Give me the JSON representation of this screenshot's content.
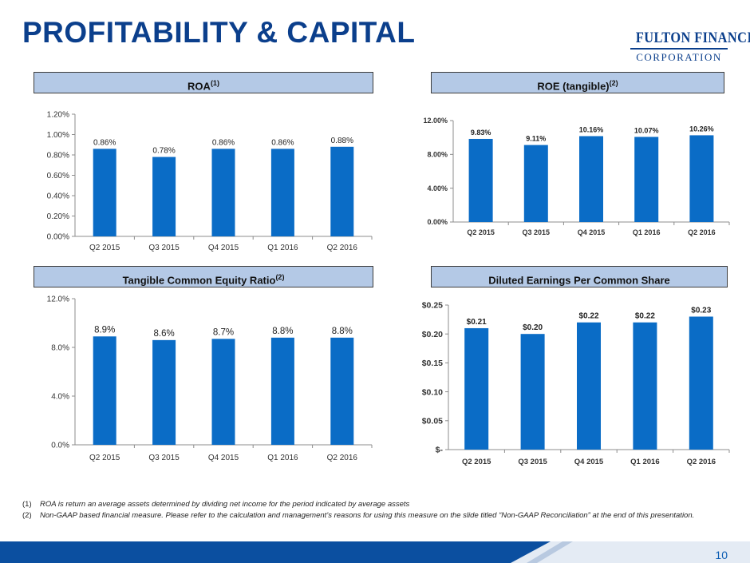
{
  "title": "PROFITABILITY & CAPITAL",
  "logo": {
    "line1": "FULTON FINANCIAL",
    "line2": "CORPORATION"
  },
  "colors": {
    "bar": "#0a6cc6",
    "header_bg": "#b4c9e6",
    "title": "#0b3f8c",
    "footer": "#0b4fa0"
  },
  "headers": {
    "roa": {
      "label": "ROA",
      "sup": "(1)"
    },
    "roe": {
      "label": "ROE (tangible)",
      "sup": "(2)"
    },
    "tce": {
      "label": "Tangible Common Equity Ratio",
      "sup": "(2)"
    },
    "eps": {
      "label": "Diluted Earnings Per Common Share",
      "sup": ""
    }
  },
  "chart_data": [
    {
      "id": "roa",
      "type": "bar",
      "title": "ROA",
      "categories": [
        "Q2 2015",
        "Q3 2015",
        "Q4 2015",
        "Q1 2016",
        "Q2 2016"
      ],
      "values": [
        0.86,
        0.78,
        0.86,
        0.86,
        0.88
      ],
      "data_labels": [
        "0.86%",
        "0.78%",
        "0.86%",
        "0.86%",
        "0.88%"
      ],
      "ylim": [
        0,
        1.2
      ],
      "yticks": [
        0,
        0.2,
        0.4,
        0.6,
        0.8,
        1.0,
        1.2
      ],
      "ytick_labels": [
        "0.00%",
        "0.20%",
        "0.40%",
        "0.60%",
        "0.80%",
        "1.00%",
        "1.20%"
      ]
    },
    {
      "id": "roe",
      "type": "bar",
      "title": "ROE (tangible)",
      "categories": [
        "Q2 2015",
        "Q3 2015",
        "Q4 2015",
        "Q1 2016",
        "Q2 2016"
      ],
      "values": [
        9.83,
        9.11,
        10.16,
        10.07,
        10.26
      ],
      "data_labels": [
        "9.83%",
        "9.11%",
        "10.16%",
        "10.07%",
        "10.26%"
      ],
      "ylim": [
        0,
        12
      ],
      "yticks": [
        0,
        4,
        8,
        12
      ],
      "ytick_labels": [
        "0.00%",
        "4.00%",
        "8.00%",
        "12.00%"
      ]
    },
    {
      "id": "tce",
      "type": "bar",
      "title": "Tangible Common Equity Ratio",
      "categories": [
        "Q2 2015",
        "Q3 2015",
        "Q4 2015",
        "Q1 2016",
        "Q2 2016"
      ],
      "values": [
        8.9,
        8.6,
        8.7,
        8.8,
        8.8
      ],
      "data_labels": [
        "8.9%",
        "8.6%",
        "8.7%",
        "8.8%",
        "8.8%"
      ],
      "ylim": [
        0,
        12
      ],
      "yticks": [
        0,
        4,
        8,
        12
      ],
      "ytick_labels": [
        "0.0%",
        "4.0%",
        "8.0%",
        "12.0%"
      ]
    },
    {
      "id": "eps",
      "type": "bar",
      "title": "Diluted Earnings Per Common Share",
      "categories": [
        "Q2 2015",
        "Q3 2015",
        "Q4 2015",
        "Q1 2016",
        "Q2 2016"
      ],
      "values": [
        0.21,
        0.2,
        0.22,
        0.22,
        0.23
      ],
      "data_labels": [
        "$0.21",
        "$0.20",
        "$0.22",
        "$0.22",
        "$0.23"
      ],
      "ylim": [
        0,
        0.25
      ],
      "yticks": [
        0,
        0.05,
        0.1,
        0.15,
        0.2,
        0.25
      ],
      "ytick_labels": [
        "$-",
        "$0.05",
        "$0.10",
        "$0.15",
        "$0.20",
        "$0.25"
      ]
    }
  ],
  "footnotes": [
    {
      "num": "(1)",
      "text": "ROA is return an average assets determined by dividing net income for the period indicated by average assets"
    },
    {
      "num": "(2)",
      "text": "Non-GAAP based financial measure.  Please refer to the calculation and management’s reasons for using this measure on the slide  titled “Non-GAAP Reconciliation” at the end of this presentation."
    }
  ],
  "page_number": "10"
}
